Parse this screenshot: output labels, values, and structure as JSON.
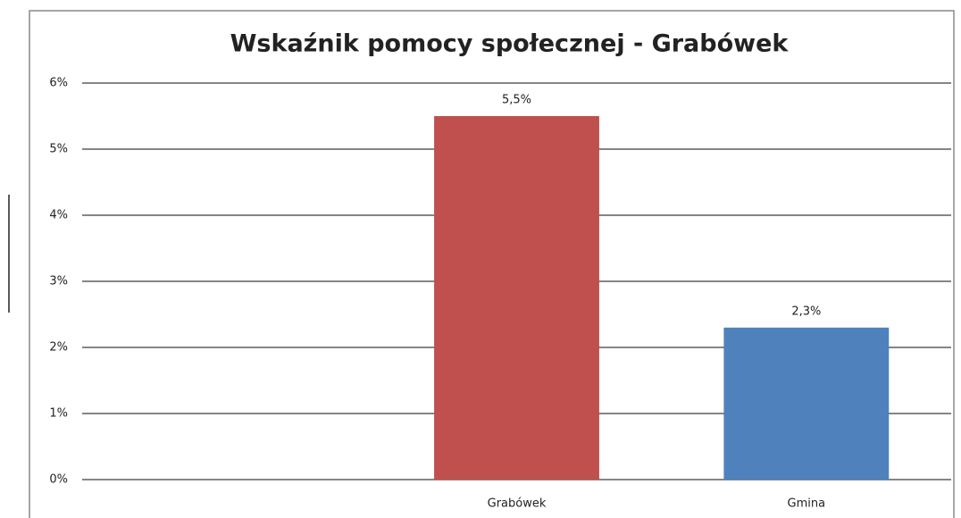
{
  "chart_data": {
    "type": "bar",
    "title": "Wskaźnik pomocy społecznej - Grabówek",
    "categories": [
      null,
      "Grabówek",
      "Gmina"
    ],
    "values": [
      null,
      5.5,
      2.3
    ],
    "value_labels": [
      null,
      "5,5%",
      "2,3%"
    ],
    "colors": [
      null,
      "#c0504d",
      "#4f81bd"
    ],
    "ylim": [
      0,
      6
    ],
    "yticks": [
      {
        "value": 0,
        "label": "0%"
      },
      {
        "value": 1,
        "label": "1%"
      },
      {
        "value": 2,
        "label": "2%"
      },
      {
        "value": 3,
        "label": "3%"
      },
      {
        "value": 4,
        "label": "4%"
      },
      {
        "value": 5,
        "label": "5%"
      },
      {
        "value": 6,
        "label": "6%"
      }
    ],
    "grid": true
  }
}
